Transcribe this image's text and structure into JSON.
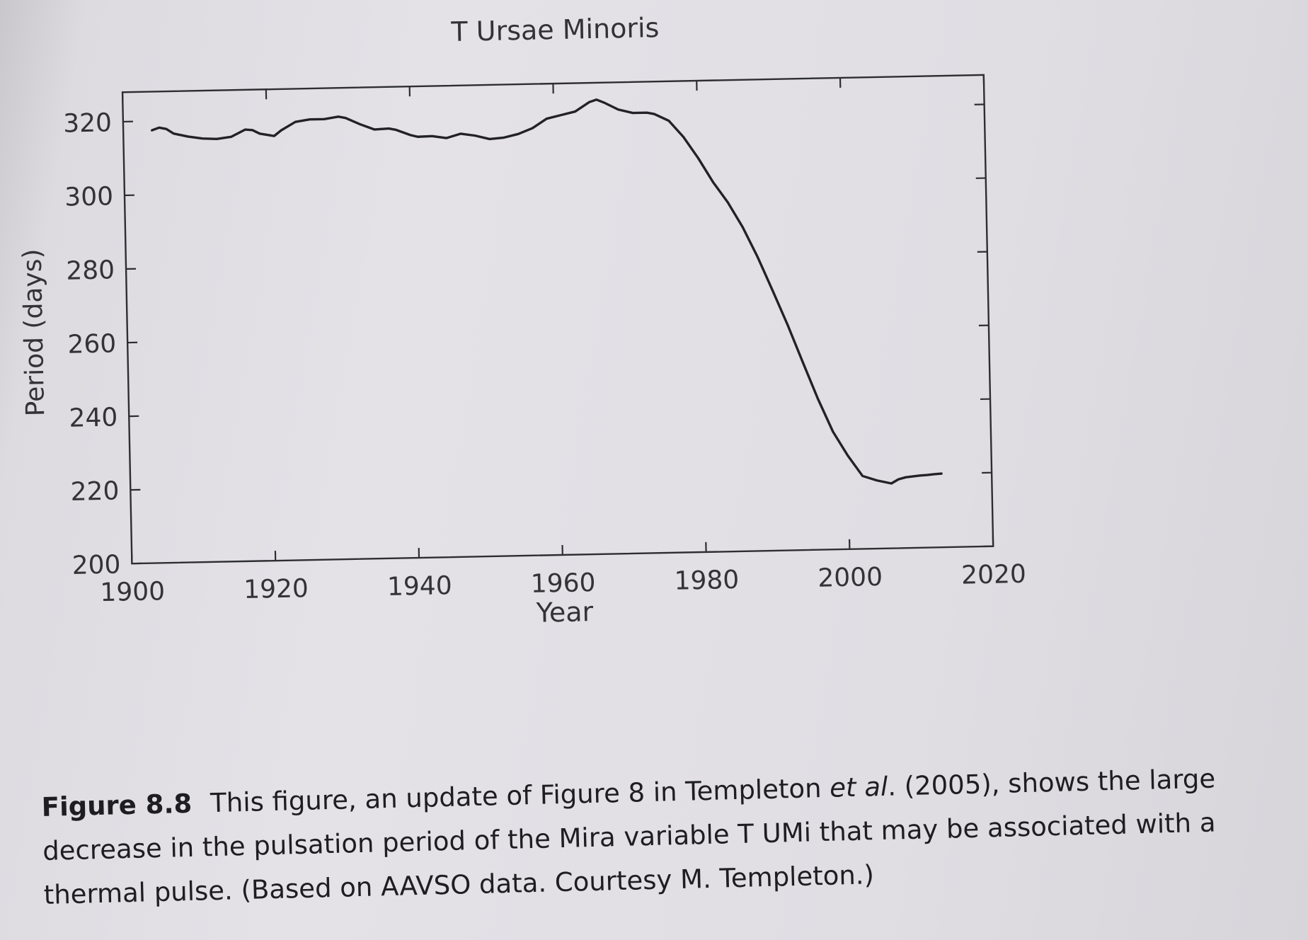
{
  "chart_data": {
    "type": "line",
    "title": "T Ursae Minoris",
    "xlabel": "Year",
    "ylabel": "Period (days)",
    "xlim": [
      1900,
      2020
    ],
    "ylim": [
      200,
      328
    ],
    "x_ticks": [
      1900,
      1920,
      1940,
      1960,
      1980,
      2000,
      2020
    ],
    "y_ticks": [
      200,
      220,
      240,
      260,
      280,
      300,
      320
    ],
    "grid": false,
    "series": [
      {
        "x": [
          1904,
          1905,
          1906,
          1907,
          1909,
          1911,
          1913,
          1915,
          1917,
          1918,
          1919,
          1921,
          1922,
          1924,
          1926,
          1928,
          1930,
          1931,
          1933,
          1935,
          1937,
          1938,
          1940,
          1941,
          1943,
          1945,
          1947,
          1949,
          1951,
          1953,
          1955,
          1957,
          1959,
          1961,
          1963,
          1965,
          1966,
          1967,
          1969,
          1971,
          1973,
          1974,
          1976,
          1978,
          1980,
          1982,
          1984,
          1986,
          1988,
          1990,
          1992,
          1994,
          1996,
          1998,
          2000,
          2002,
          2004,
          2006,
          2007,
          2008,
          2009,
          2010,
          2011,
          2012,
          2013
        ],
        "y": [
          317.5,
          318.2,
          317.8,
          316.5,
          315.6,
          315.0,
          314.8,
          315.3,
          317.2,
          317.0,
          316.0,
          315.3,
          316.8,
          319.0,
          319.6,
          319.6,
          320.2,
          319.8,
          318.0,
          316.5,
          316.7,
          316.3,
          314.8,
          314.3,
          314.4,
          313.8,
          314.9,
          314.3,
          313.3,
          313.6,
          314.5,
          316.0,
          318.5,
          319.4,
          320.3,
          322.8,
          323.4,
          322.6,
          320.6,
          319.6,
          319.6,
          319.2,
          317.3,
          312.8,
          307.0,
          300.4,
          294.8,
          288.0,
          279.8,
          270.6,
          261.2,
          251.0,
          241.0,
          232.0,
          225.4,
          219.8,
          218.5,
          217.6,
          218.7,
          219.2,
          219.4,
          219.6,
          219.7,
          219.9,
          220.0
        ]
      }
    ]
  },
  "caption": {
    "label": "Figure 8.8",
    "text_before": "This figure, an update of Figure 8 in Templeton ",
    "italic": "et al",
    "text_after": ". (2005), shows the large decrease in the pulsation period of the Mira variable T UMi that may be associated with a thermal pulse. (Based on AAVSO data. Courtesy M. Templeton.)"
  }
}
